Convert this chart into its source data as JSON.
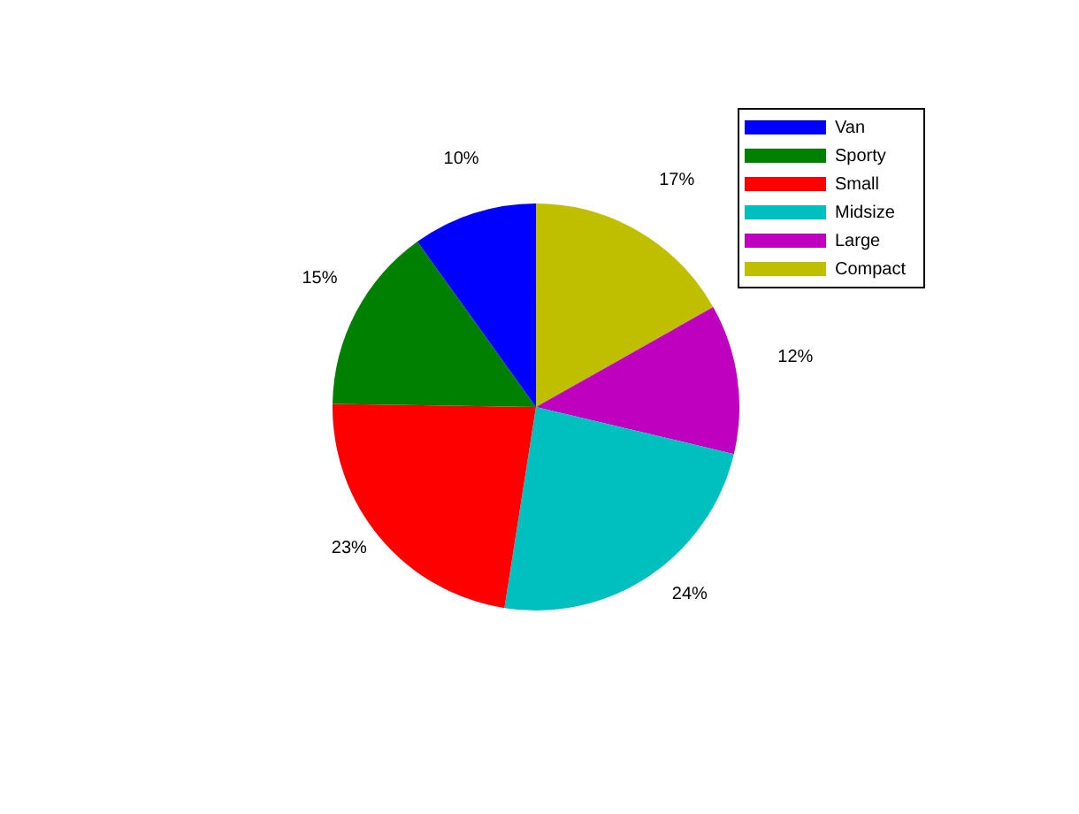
{
  "chart_data": {
    "type": "pie",
    "categories": [
      "Van",
      "Sporty",
      "Small",
      "Midsize",
      "Large",
      "Compact"
    ],
    "values": [
      10,
      15,
      23,
      24,
      12,
      17
    ],
    "colors": [
      "#0000ff",
      "#008000",
      "#ff0000",
      "#00bfbf",
      "#bf00bf",
      "#bfbf00"
    ],
    "value_labels": [
      "10%",
      "15%",
      "23%",
      "24%",
      "12%",
      "17%"
    ],
    "legend": "top right"
  }
}
